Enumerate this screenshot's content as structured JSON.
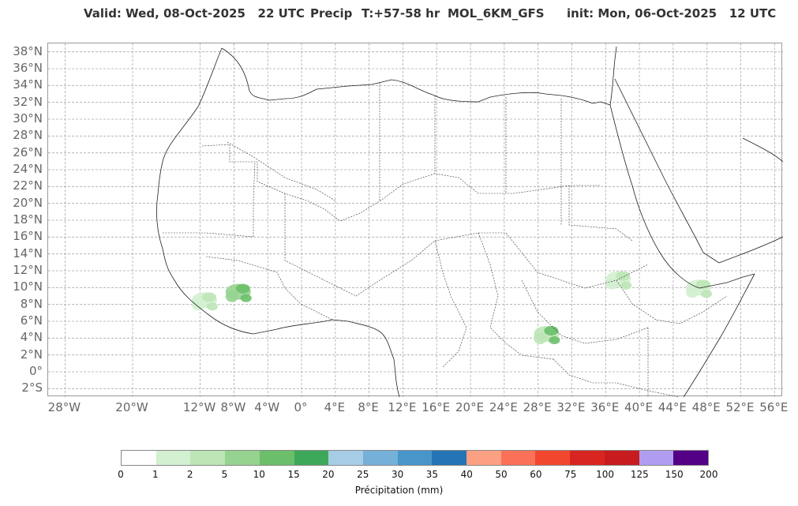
{
  "title": {
    "valid": "Valid: Wed, 08-Oct-2025   22 UTC",
    "field": "Precip",
    "lead": "T:+57-58 hr",
    "model": "MOL_6KM_GFS",
    "init": "init: Mon, 06-Oct-2025   12 UTC"
  },
  "map": {
    "extent": {
      "lon_min": -30,
      "lon_max": 57,
      "lat_min": -3,
      "lat_max": 39
    },
    "lat_labels": [
      "38°N",
      "36°N",
      "34°N",
      "32°N",
      "30°N",
      "28°N",
      "26°N",
      "24°N",
      "22°N",
      "20°N",
      "18°N",
      "16°N",
      "14°N",
      "12°N",
      "10°N",
      "8°N",
      "6°N",
      "4°N",
      "2°N",
      "0°",
      "2°S"
    ],
    "lat_values": [
      38,
      36,
      34,
      32,
      30,
      28,
      26,
      24,
      22,
      20,
      18,
      16,
      14,
      12,
      10,
      8,
      6,
      4,
      2,
      0,
      -2
    ],
    "lon_labels": [
      "28°W",
      "20°W",
      "12°W",
      "8°W",
      "4°W",
      "0°",
      "4°E",
      "8°E",
      "12°E",
      "16°E",
      "20°E",
      "24°E",
      "28°E",
      "32°E",
      "36°E",
      "40°E",
      "44°E",
      "48°E",
      "52°E",
      "56°E"
    ],
    "lon_values": [
      -28,
      -20,
      -12,
      -8,
      -4,
      0,
      4,
      8,
      12,
      16,
      20,
      24,
      28,
      32,
      36,
      40,
      44,
      48,
      52,
      56
    ],
    "gridlines": true
  },
  "colorbar": {
    "label": "Précipitation (mm)",
    "ticks": [
      "0",
      "1",
      "2",
      "5",
      "10",
      "15",
      "20",
      "25",
      "30",
      "35",
      "40",
      "50",
      "60",
      "75",
      "100",
      "125",
      "150",
      "200"
    ],
    "colors": [
      "#ffffff",
      "#d3f0d0",
      "#bde5b6",
      "#96d390",
      "#6bbf6a",
      "#3ea85a",
      "#a7cde6",
      "#75b0d9",
      "#4896c9",
      "#2474b6",
      "#fca083",
      "#fb7058",
      "#f2472f",
      "#d92520",
      "#c71b1e",
      "#b09df0",
      "#530087"
    ]
  },
  "precip_patches": [
    {
      "region": "Guinea coast / Sierra Leone",
      "lon": -11.5,
      "lat": 8.5,
      "level": "1-5"
    },
    {
      "region": "Côte d'Ivoire west",
      "lon": -7.5,
      "lat": 9.5,
      "level": "5-15"
    },
    {
      "region": "Central African Republic / South Sudan",
      "lon": 29,
      "lat": 4.5,
      "level": "1-15"
    },
    {
      "region": "Ethiopian highlands",
      "lon": 37.5,
      "lat": 11,
      "level": "1-5"
    },
    {
      "region": "Somalia north",
      "lon": 47,
      "lat": 10,
      "level": "1-5"
    }
  ]
}
